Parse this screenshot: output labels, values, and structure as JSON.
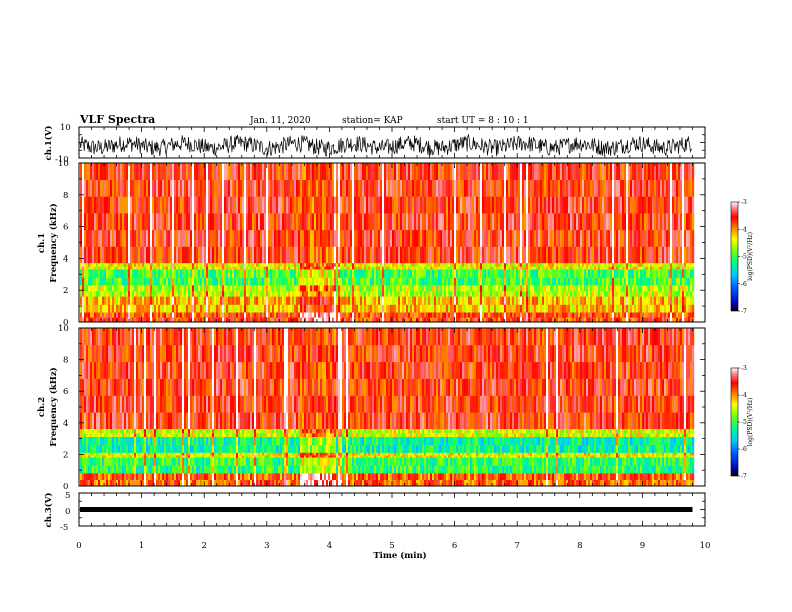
{
  "header": {
    "title": "VLF Spectra",
    "date": "Jan. 11, 2020",
    "station": "station= KAP",
    "start_ut": "start  UT =  8 : 10 : 1"
  },
  "chart_data": [
    {
      "type": "line",
      "name": "ch1-waveform",
      "ylabel": "ch.1(V)",
      "ylim": [
        -10,
        10
      ],
      "yticks": [
        "10",
        "-10"
      ],
      "xlim": [
        0,
        10
      ],
      "data_end_min": 9.8,
      "color": "#000000",
      "description_level": "dense noise, mostly between -7 and 3 V"
    },
    {
      "type": "heatmap",
      "name": "ch1-spectrogram",
      "ylabel": "ch.1\nFrequency (kHz)",
      "ylabel_lines": [
        "ch.1",
        "Frequency  (kHz)"
      ],
      "ylim": [
        0,
        10
      ],
      "yticks": [
        "0",
        "2",
        "4",
        "6",
        "8",
        "10"
      ],
      "xlim": [
        0,
        10
      ],
      "data_end_min": 9.8,
      "colorbar": {
        "label": "log(PSD)(V²/Hz)",
        "min": -7,
        "max": -3,
        "ticks": [
          "-3",
          "-4",
          "-5",
          "-6",
          "-7"
        ]
      },
      "bands_khz": [
        {
          "from": 3.7,
          "to": 10,
          "level": -3.6
        },
        {
          "from": 3.3,
          "to": 3.7,
          "level": -4.4
        },
        {
          "from": 2.3,
          "to": 3.3,
          "level": -5.0
        },
        {
          "from": 1.6,
          "to": 2.3,
          "level": -4.6
        },
        {
          "from": 0.6,
          "to": 1.6,
          "level": -4.2
        },
        {
          "from": 0.0,
          "to": 0.6,
          "level": -3.7
        }
      ],
      "quiet_interval_min": [
        3.5,
        4.1
      ]
    },
    {
      "type": "heatmap",
      "name": "ch2-spectrogram",
      "ylabel": "ch.2\nFrequency (kHz)",
      "ylabel_lines": [
        "ch.2",
        "Frequency  (kHz)"
      ],
      "ylim": [
        0,
        10
      ],
      "yticks": [
        "0",
        "2",
        "4",
        "6",
        "8",
        "10"
      ],
      "xlim": [
        0,
        10
      ],
      "data_end_min": 9.8,
      "colorbar": {
        "label": "log(PSD)(V²/Hz)",
        "min": -7,
        "max": -3,
        "ticks": [
          "-3",
          "-4",
          "-5",
          "-6",
          "-7"
        ]
      },
      "bands_khz": [
        {
          "from": 3.6,
          "to": 10,
          "level": -3.6
        },
        {
          "from": 3.1,
          "to": 3.6,
          "level": -4.5
        },
        {
          "from": 2.1,
          "to": 3.1,
          "level": -5.3
        },
        {
          "from": 1.8,
          "to": 2.1,
          "level": -4.4
        },
        {
          "from": 0.8,
          "to": 1.8,
          "level": -5.1
        },
        {
          "from": 0.0,
          "to": 0.8,
          "level": -3.8
        }
      ],
      "quiet_interval_min": [
        3.5,
        4.1
      ]
    },
    {
      "type": "line",
      "name": "ch3-waveform",
      "ylabel": "ch.3(V)",
      "ylim": [
        -5,
        5
      ],
      "yticks": [
        "5",
        "0",
        "-5"
      ],
      "xlim": [
        0,
        10
      ],
      "data_end_min": 9.8,
      "level_v": 0,
      "color": "#000000"
    }
  ],
  "x_axis": {
    "label": "Time  (min)",
    "ticks": [
      "0",
      "1",
      "2",
      "3",
      "4",
      "5",
      "6",
      "7",
      "8",
      "9",
      "10"
    ]
  }
}
